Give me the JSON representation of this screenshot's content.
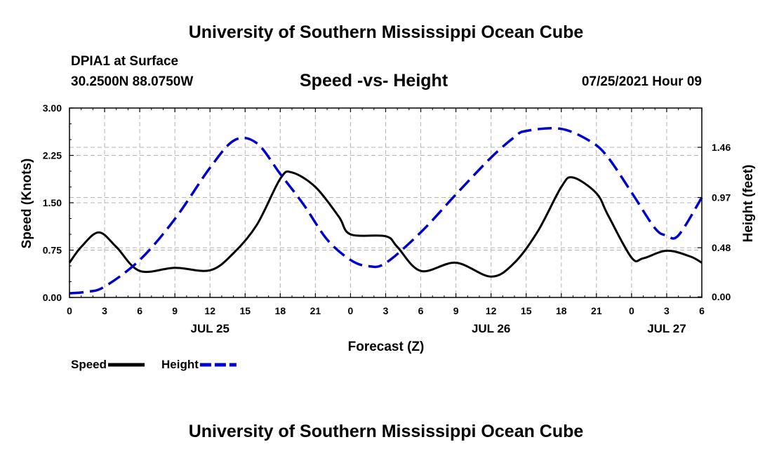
{
  "header": {
    "title": "University of Southern Mississippi Ocean Cube",
    "station": "DPIA1 at Surface",
    "coords": "30.2500N  88.0750W",
    "subtitle": "Speed -vs- Height",
    "datetime": "07/25/2021 Hour 09"
  },
  "footer": {
    "title": "University of Southern Mississippi Ocean Cube"
  },
  "chart_data": {
    "type": "line",
    "title": "Speed -vs- Height",
    "xlabel": "Forecast (Z)",
    "ylabel_left": "Speed (Knots)",
    "ylabel_right": "Height (feet)",
    "xlim": [
      0,
      54
    ],
    "ylim_left": [
      0,
      3
    ],
    "ylim_right": [
      -0.0058,
      1.8435
    ],
    "x_ticks": [
      0,
      3,
      6,
      9,
      12,
      15,
      18,
      21,
      24,
      27,
      30,
      33,
      36,
      39,
      42,
      45,
      48,
      51,
      54
    ],
    "x_tick_labels": [
      "0",
      "3",
      "6",
      "9",
      "12",
      "15",
      "18",
      "21",
      "0",
      "3",
      "6",
      "9",
      "12",
      "15",
      "18",
      "21",
      "0",
      "3",
      "6"
    ],
    "date_labels": [
      {
        "x": 12,
        "label": "JUL 25"
      },
      {
        "x": 36,
        "label": "JUL 26"
      },
      {
        "x": 51,
        "label": "JUL 27"
      }
    ],
    "y_left_ticks": [
      0,
      0.75,
      1.5,
      2.25,
      3
    ],
    "y_left_tick_labels": [
      "0.00",
      "0.75",
      "1.50",
      "2.25",
      "3.00"
    ],
    "y_right_ticks": [
      0.0,
      0.48,
      0.97,
      1.46
    ],
    "y_right_tick_labels": [
      "0.00",
      "0.48",
      "0.97",
      "1.46"
    ],
    "grid": true,
    "legend": [
      {
        "name": "Speed",
        "color": "#000000",
        "dash": false
      },
      {
        "name": "Height",
        "color": "#0000cc",
        "dash": true
      }
    ],
    "series": [
      {
        "name": "Speed",
        "axis": "left",
        "color": "#000000",
        "x": [
          0,
          1,
          2.5,
          4,
          6,
          9,
          12,
          14,
          16,
          18,
          19,
          21,
          23,
          24,
          27,
          28,
          30,
          33,
          36,
          38,
          40,
          42,
          43,
          45,
          46,
          48,
          49,
          51,
          53,
          54
        ],
        "values": [
          0.55,
          0.8,
          1.03,
          0.8,
          0.42,
          0.47,
          0.43,
          0.7,
          1.15,
          1.88,
          1.98,
          1.75,
          1.28,
          1.0,
          0.97,
          0.8,
          0.42,
          0.55,
          0.33,
          0.55,
          1.05,
          1.75,
          1.9,
          1.65,
          1.3,
          0.63,
          0.62,
          0.74,
          0.65,
          0.55
        ]
      },
      {
        "name": "Height",
        "axis": "right",
        "color": "#0000cc",
        "x": [
          0,
          1.5,
          3,
          6,
          9,
          12,
          14.1,
          16,
          18,
          20,
          22,
          24,
          25.5,
          27,
          30,
          33,
          36,
          39,
          38,
          42,
          44.6,
          46,
          48,
          50,
          51,
          52,
          54
        ],
        "values": [
          0.035,
          0.05,
          0.1,
          0.36,
          0.76,
          1.26,
          1.53,
          1.5,
          1.2,
          0.9,
          0.56,
          0.36,
          0.3,
          0.33,
          0.63,
          1.0,
          1.36,
          1.62,
          1.56,
          1.64,
          1.51,
          1.36,
          1.02,
          0.67,
          0.6,
          0.6,
          0.97
        ]
      }
    ]
  }
}
